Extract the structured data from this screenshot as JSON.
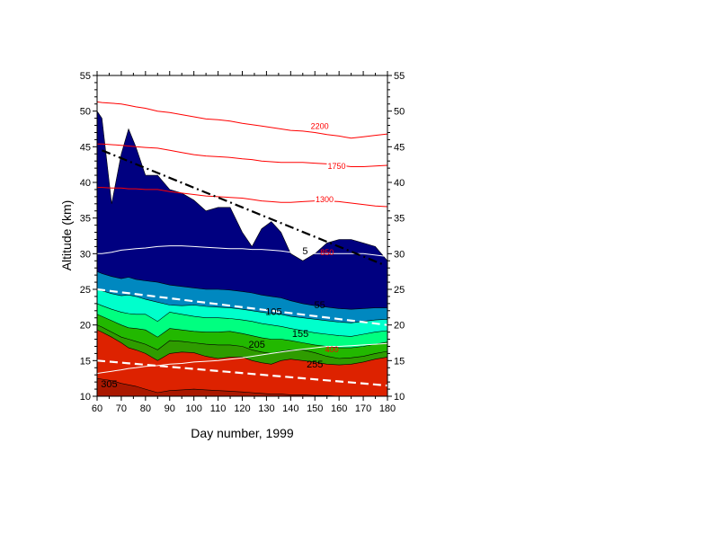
{
  "chart_data": {
    "type": "area",
    "xlabel": "Day number, 1999",
    "ylabel": "Altitude (km)",
    "xlim": [
      60,
      180
    ],
    "ylim": [
      10,
      55
    ],
    "x_ticks": [
      60,
      70,
      80,
      90,
      100,
      110,
      120,
      130,
      140,
      150,
      160,
      170,
      180
    ],
    "y_ticks": [
      10,
      15,
      20,
      25,
      30,
      35,
      40,
      45,
      50,
      55
    ],
    "x": [
      60,
      62,
      66,
      70,
      73,
      76,
      80,
      85,
      90,
      95,
      100,
      105,
      110,
      115,
      120,
      124,
      128,
      132,
      136,
      140,
      145,
      150,
      155,
      160,
      165,
      170,
      175,
      180
    ],
    "filled_bands": [
      {
        "color": "#000080",
        "top": [
          50,
          49,
          37,
          44,
          47.5,
          45,
          41,
          41,
          39,
          38.5,
          37.5,
          36,
          36.5,
          36.5,
          33,
          31,
          33.5,
          34.5,
          33,
          30,
          29,
          30,
          31.5,
          32,
          32,
          31.5,
          31,
          29
        ]
      },
      {
        "color": "#0088C0",
        "top": [
          27.5,
          27.2,
          26.8,
          26.5,
          26.7,
          26.4,
          26.2,
          26,
          25.6,
          25.4,
          25.2,
          25,
          25,
          24.9,
          24.7,
          24.5,
          24.2,
          24,
          23.8,
          23.4,
          23,
          22.7,
          22.5,
          22.3,
          22.2,
          22.3,
          22.4,
          22.4
        ]
      },
      {
        "color": "#00FFCC",
        "top": [
          25,
          24.8,
          24.4,
          24.1,
          24.2,
          24,
          23.6,
          23.2,
          22.8,
          22.7,
          22.8,
          22.6,
          22.5,
          22.4,
          22.2,
          22,
          21.8,
          21.6,
          21.5,
          21.2,
          21,
          20.8,
          20.6,
          20.4,
          20.3,
          20.5,
          20.7,
          20.8
        ]
      },
      {
        "color": "#00FF80",
        "top": [
          23,
          22.7,
          22.2,
          21.8,
          21.6,
          21.5,
          21.5,
          20.5,
          21.8,
          21.5,
          21.2,
          21,
          21,
          20.9,
          20.7,
          20.5,
          20.2,
          20,
          19.8,
          19.5,
          19.2,
          18.9,
          18.7,
          18.5,
          18.4,
          18.7,
          19,
          19.2
        ]
      },
      {
        "color": "#22B800",
        "top": [
          21.5,
          21.2,
          20.6,
          20,
          19.6,
          19.5,
          19.3,
          18.3,
          19.5,
          19.3,
          19.1,
          19,
          19,
          19.1,
          18.8,
          18.5,
          18.2,
          18,
          18,
          17.8,
          17.5,
          17.2,
          17,
          16.8,
          16.8,
          17,
          17.3,
          17.6
        ]
      },
      {
        "color": "#2F9C00",
        "top": [
          20,
          19.7,
          19,
          18.3,
          18,
          17.7,
          17.3,
          16.5,
          17.8,
          17.7,
          17.5,
          17.3,
          17.2,
          17.2,
          17,
          16.5,
          16.2,
          16,
          16.3,
          16.5,
          16.5,
          16.1,
          15.6,
          15.3,
          15.4,
          15.6,
          16,
          16.3
        ]
      },
      {
        "color": "#DD2200",
        "top": [
          19.3,
          19,
          18.3,
          17.5,
          16.8,
          16.5,
          16,
          15,
          16,
          16.2,
          16.1,
          15.6,
          15.3,
          15.5,
          15.5,
          15,
          14.7,
          14.5,
          15,
          15.2,
          15,
          14.8,
          14.5,
          14.4,
          14.5,
          14.8,
          15.2,
          15.5
        ]
      },
      {
        "color": "#AA1800",
        "top": [
          12.5,
          12.4,
          12.2,
          11.8,
          11.6,
          11.4,
          11,
          10.5,
          10.8,
          10.9,
          11,
          10.9,
          10.8,
          10.7,
          10.6,
          10.5,
          10.4,
          10.3,
          10.3,
          10.2,
          10.2,
          10.1,
          10.1,
          10,
          10,
          10,
          10,
          10
        ]
      }
    ],
    "contour_labels": [
      {
        "text": "105",
        "x": 133,
        "y": 21.8
      },
      {
        "text": "55",
        "x": 152,
        "y": 22.7
      },
      {
        "text": "155",
        "x": 144,
        "y": 18.7
      },
      {
        "text": "205",
        "x": 126,
        "y": 17.2
      },
      {
        "text": "255",
        "x": 150,
        "y": 14.4
      },
      {
        "text": "305",
        "x": 65,
        "y": 11.6
      },
      {
        "text": "5",
        "x": 146,
        "y": 30.3
      }
    ],
    "red_lines": [
      {
        "label": "2200",
        "label_x": 152,
        "label_y": 47.8,
        "y": [
          51.3,
          51.2,
          51.1,
          51,
          50.8,
          50.6,
          50.4,
          50,
          49.8,
          49.5,
          49.2,
          48.9,
          48.8,
          48.6,
          48.3,
          48.1,
          47.9,
          47.7,
          47.5,
          47.3,
          47.2,
          47,
          46.7,
          46.5,
          46.2,
          46.4,
          46.6,
          46.8
        ]
      },
      {
        "label": "1750",
        "label_x": 159,
        "label_y": 42.2,
        "y": [
          45.4,
          45.4,
          45.3,
          45.2,
          45.1,
          45,
          44.9,
          44.8,
          44.5,
          44.2,
          43.9,
          43.7,
          43.6,
          43.5,
          43.3,
          43.2,
          43,
          42.9,
          42.8,
          42.8,
          42.8,
          42.7,
          42.6,
          42.4,
          42.2,
          42.2,
          42.3,
          42.4
        ]
      },
      {
        "label": "1300",
        "label_x": 154,
        "label_y": 37.5,
        "y": [
          39.3,
          39.3,
          39.2,
          39.2,
          39.1,
          39.1,
          39,
          39,
          38.7,
          38.5,
          38.3,
          38.1,
          38,
          37.9,
          37.8,
          37.6,
          37.4,
          37.3,
          37.2,
          37.2,
          37.3,
          37.4,
          37.4,
          37.3,
          37.1,
          36.9,
          36.7,
          36.6
        ]
      },
      {
        "label": "850",
        "label_x": 155,
        "label_y": 30.1,
        "y": null
      },
      {
        "label": "400",
        "label_x": 157,
        "label_y": 16.5,
        "y": null
      }
    ],
    "white_lines": [
      {
        "y": [
          30,
          30,
          30.2,
          30.5,
          30.6,
          30.7,
          30.8,
          31,
          31.1,
          31.1,
          31,
          30.9,
          30.8,
          30.7,
          30.7,
          30.6,
          30.6,
          30.5,
          30.4,
          30.2,
          30.1,
          30,
          30,
          30,
          30,
          30,
          29.8,
          29.6
        ]
      },
      {
        "y": [
          13.2,
          13.3,
          13.5,
          13.7,
          13.9,
          14,
          14.2,
          14.3,
          14.5,
          14.6,
          14.8,
          14.9,
          15,
          15.2,
          15.4,
          15.6,
          15.8,
          16,
          16.2,
          16.4,
          16.6,
          16.8,
          17,
          17,
          17.1,
          17.2,
          17.3,
          17.4
        ]
      }
    ],
    "dashed_lines": [
      {
        "color": "#000000",
        "style": "dash-dot",
        "x": [
          62,
          178
        ],
        "y": [
          44.5,
          28.5
        ]
      },
      {
        "color": "#ffffff",
        "style": "dash",
        "x": [
          60,
          180
        ],
        "y": [
          25,
          20
        ]
      },
      {
        "color": "#ffffff",
        "style": "dash",
        "x": [
          60,
          180
        ],
        "y": [
          15,
          11.5
        ]
      }
    ]
  }
}
